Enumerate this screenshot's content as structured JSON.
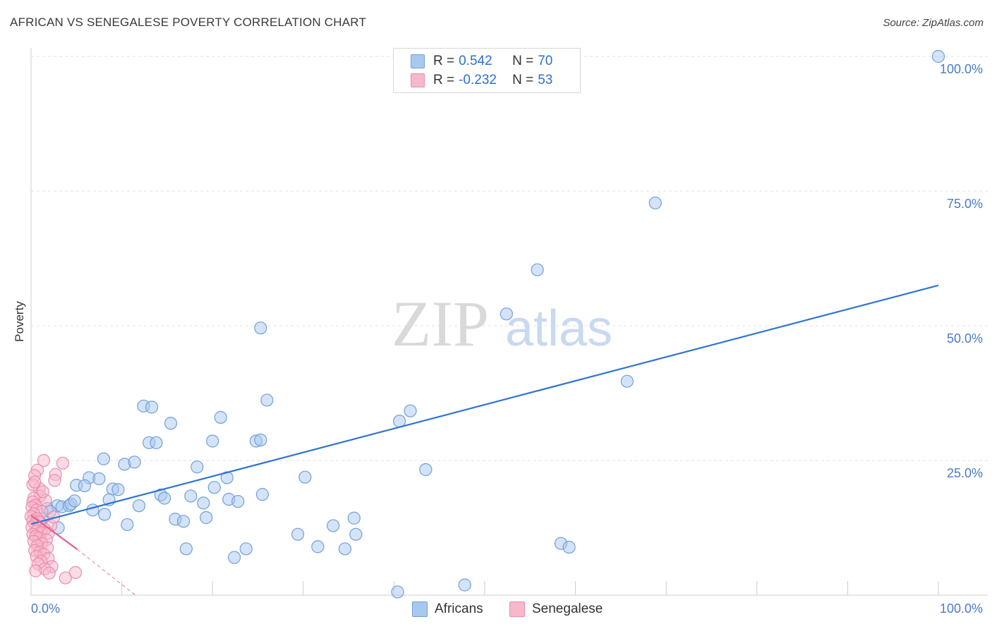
{
  "title": "AFRICAN VS SENEGALESE POVERTY CORRELATION CHART",
  "source": "Source: ZipAtlas.com",
  "watermark": {
    "zip": "ZIP",
    "atlas": "atlas"
  },
  "legend_top": {
    "rows": [
      {
        "r_label": "R =",
        "r_value": "0.542",
        "n_label": "N =",
        "n_value": "70"
      },
      {
        "r_label": "R =",
        "r_value": "-0.232",
        "n_label": "N =",
        "n_value": "53"
      }
    ]
  },
  "colors": {
    "africans_fill": "#a9c8f0",
    "africans_stroke": "#6f9fdc",
    "africans_line": "#2e74d4",
    "senegalese_fill": "#f7b8cb",
    "senegalese_stroke": "#ec8cab",
    "senegalese_line": "#e4618d",
    "tick_text": "#4a7bc8",
    "grid": "#e0e0e0"
  },
  "chart_data": {
    "type": "scatter",
    "title": "AFRICAN VS SENEGALESE POVERTY CORRELATION CHART",
    "xlabel": "",
    "ylabel": "Poverty",
    "xlim": [
      0,
      100
    ],
    "ylim": [
      0,
      100
    ],
    "x_tick_labels": [
      "0.0%",
      "100.0%"
    ],
    "y_tick_labels": [
      {
        "value": 25,
        "label": "25.0%"
      },
      {
        "value": 50,
        "label": "50.0%"
      },
      {
        "value": 75,
        "label": "75.0%"
      },
      {
        "value": 100,
        "label": "100.0%"
      }
    ],
    "series": [
      {
        "name": "Africans",
        "R": 0.542,
        "N": 70,
        "trend": {
          "x0": 0,
          "y0": 13.2,
          "x1": 100,
          "y1": 57.5
        },
        "points": [
          [
            100.0,
            100.0
          ],
          [
            68.8,
            72.8
          ],
          [
            55.8,
            60.4
          ],
          [
            52.4,
            52.2
          ],
          [
            25.3,
            49.6
          ],
          [
            65.7,
            39.7
          ],
          [
            26.0,
            36.2
          ],
          [
            12.4,
            35.1
          ],
          [
            13.3,
            34.9
          ],
          [
            41.8,
            34.2
          ],
          [
            20.9,
            33.0
          ],
          [
            40.6,
            32.3
          ],
          [
            15.4,
            31.9
          ],
          [
            20.0,
            28.6
          ],
          [
            24.8,
            28.6
          ],
          [
            25.3,
            28.8
          ],
          [
            13.0,
            28.3
          ],
          [
            13.8,
            28.3
          ],
          [
            8.0,
            25.3
          ],
          [
            10.3,
            24.3
          ],
          [
            11.4,
            24.7
          ],
          [
            18.3,
            23.8
          ],
          [
            43.5,
            23.3
          ],
          [
            6.4,
            21.8
          ],
          [
            7.5,
            21.6
          ],
          [
            21.6,
            21.8
          ],
          [
            30.2,
            21.9
          ],
          [
            5.0,
            20.4
          ],
          [
            5.9,
            20.3
          ],
          [
            9.0,
            19.7
          ],
          [
            9.6,
            19.6
          ],
          [
            20.2,
            20.0
          ],
          [
            14.3,
            18.6
          ],
          [
            14.7,
            18.0
          ],
          [
            17.6,
            18.4
          ],
          [
            25.5,
            18.7
          ],
          [
            8.6,
            17.7
          ],
          [
            21.8,
            17.8
          ],
          [
            22.8,
            17.4
          ],
          [
            19.0,
            17.1
          ],
          [
            2.9,
            16.6
          ],
          [
            1.8,
            16.1
          ],
          [
            3.4,
            16.4
          ],
          [
            4.2,
            16.6
          ],
          [
            4.4,
            16.9
          ],
          [
            11.9,
            16.6
          ],
          [
            6.8,
            15.8
          ],
          [
            8.1,
            15.0
          ],
          [
            19.3,
            14.4
          ],
          [
            1.3,
            14.2
          ],
          [
            35.6,
            14.3
          ],
          [
            15.9,
            14.1
          ],
          [
            16.8,
            13.7
          ],
          [
            10.6,
            13.1
          ],
          [
            33.3,
            12.9
          ],
          [
            29.4,
            11.3
          ],
          [
            35.8,
            11.3
          ],
          [
            23.7,
            8.6
          ],
          [
            17.1,
            8.6
          ],
          [
            31.6,
            9.0
          ],
          [
            34.6,
            8.6
          ],
          [
            58.4,
            9.6
          ],
          [
            59.3,
            8.9
          ],
          [
            22.4,
            7.0
          ],
          [
            47.8,
            1.9
          ],
          [
            40.4,
            0.6
          ],
          [
            1.0,
            13.5
          ],
          [
            2.1,
            15.5
          ],
          [
            3.0,
            12.5
          ],
          [
            4.8,
            17.5
          ]
        ]
      },
      {
        "name": "Senegalese",
        "R": -0.232,
        "N": 53,
        "trend": {
          "x0": 0,
          "y0": 14.8,
          "x1": 5.1,
          "y1": 8.5
        },
        "trend_dashed": {
          "x0": 5.1,
          "y0": 8.5,
          "x1": 11.5,
          "y1": 0
        },
        "points": [
          [
            1.4,
            25.0
          ],
          [
            3.5,
            24.5
          ],
          [
            0.7,
            23.2
          ],
          [
            0.4,
            22.2
          ],
          [
            2.7,
            22.4
          ],
          [
            2.6,
            21.3
          ],
          [
            0.9,
            19.8
          ],
          [
            1.0,
            18.4
          ],
          [
            0.3,
            18.0
          ],
          [
            1.6,
            17.6
          ],
          [
            0.2,
            17.3
          ],
          [
            0.5,
            16.7
          ],
          [
            0.1,
            16.3
          ],
          [
            0.6,
            15.8
          ],
          [
            1.2,
            15.5
          ],
          [
            0.3,
            15.1
          ],
          [
            0.0,
            14.6
          ],
          [
            0.7,
            14.2
          ],
          [
            0.2,
            13.8
          ],
          [
            0.9,
            13.6
          ],
          [
            0.4,
            13.2
          ],
          [
            2.2,
            12.9
          ],
          [
            0.1,
            12.6
          ],
          [
            0.8,
            12.4
          ],
          [
            1.5,
            12.2
          ],
          [
            0.6,
            11.9
          ],
          [
            1.1,
            11.6
          ],
          [
            0.2,
            11.3
          ],
          [
            1.9,
            11.5
          ],
          [
            0.5,
            10.9
          ],
          [
            0.9,
            10.6
          ],
          [
            1.7,
            10.3
          ],
          [
            0.3,
            10.0
          ],
          [
            1.2,
            9.6
          ],
          [
            0.7,
            9.2
          ],
          [
            1.8,
            8.8
          ],
          [
            0.4,
            8.3
          ],
          [
            1.0,
            8.0
          ],
          [
            1.4,
            7.6
          ],
          [
            0.6,
            7.2
          ],
          [
            1.9,
            6.8
          ],
          [
            1.1,
            6.3
          ],
          [
            0.8,
            5.8
          ],
          [
            2.3,
            5.3
          ],
          [
            1.5,
            4.9
          ],
          [
            0.5,
            4.5
          ],
          [
            2.0,
            4.1
          ],
          [
            3.8,
            3.2
          ],
          [
            4.9,
            4.2
          ],
          [
            0.2,
            20.5
          ],
          [
            1.3,
            19.2
          ],
          [
            0.4,
            21.0
          ],
          [
            2.5,
            14.5
          ]
        ]
      }
    ],
    "legend": [
      {
        "label": "Africans"
      },
      {
        "label": "Senegalese"
      }
    ],
    "grid": true
  }
}
